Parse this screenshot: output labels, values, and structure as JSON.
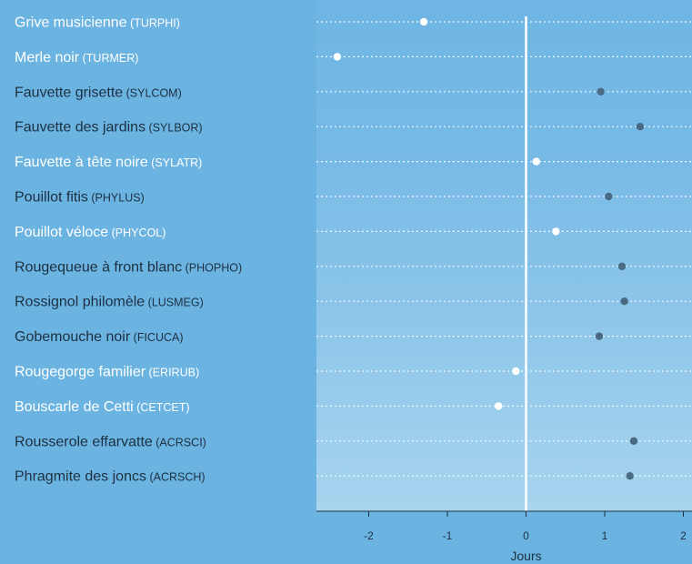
{
  "chart_data": {
    "type": "scatter",
    "xlabel": "Jours",
    "xlim": [
      -2.7,
      2.1
    ],
    "xticks": [
      -2,
      -1,
      0,
      1,
      2
    ],
    "grid": "horizontal dotted",
    "zero_line": true,
    "colors": {
      "background": "#6bb4e2",
      "panel_top": "#6fb6e4",
      "panel_bottom": "#a8d4ee",
      "highlight": "#ffffff",
      "default": "#4a6a84",
      "text_dark": "#1d2f40"
    },
    "points": [
      {
        "name": "Grive musicienne",
        "code": "(TURPHI)",
        "x": -1.3,
        "highlight": true
      },
      {
        "name": "Merle noir",
        "code": "(TURMER)",
        "x": -2.4,
        "highlight": true
      },
      {
        "name": "Fauvette grisette",
        "code": "(SYLCOM)",
        "x": 0.95,
        "highlight": false
      },
      {
        "name": "Fauvette des jardins",
        "code": "(SYLBOR)",
        "x": 1.45,
        "highlight": false
      },
      {
        "name": "Fauvette à tête noire",
        "code": "(SYLATR)",
        "x": 0.13,
        "highlight": true
      },
      {
        "name": "Pouillot fitis",
        "code": "(PHYLUS)",
        "x": 1.05,
        "highlight": false
      },
      {
        "name": "Pouillot véloce",
        "code": "(PHYCOL)",
        "x": 0.38,
        "highlight": true
      },
      {
        "name": "Rougequeue à front blanc",
        "code": "(PHOPHO)",
        "x": 1.22,
        "highlight": false
      },
      {
        "name": "Rossignol philomèle",
        "code": "(LUSMEG)",
        "x": 1.25,
        "highlight": false
      },
      {
        "name": "Gobemouche noir",
        "code": "(FICUCA)",
        "x": 0.93,
        "highlight": false
      },
      {
        "name": "Rougegorge familier",
        "code": "(ERIRUB)",
        "x": -0.13,
        "highlight": true
      },
      {
        "name": "Bouscarle de Cetti",
        "code": "(CETCET)",
        "x": -0.35,
        "highlight": true
      },
      {
        "name": "Rousserole effarvatte",
        "code": "(ACRSCI)",
        "x": 1.37,
        "highlight": false
      },
      {
        "name": "Phragmite des joncs",
        "code": "(ACRSCH)",
        "x": 1.32,
        "highlight": false
      }
    ]
  }
}
